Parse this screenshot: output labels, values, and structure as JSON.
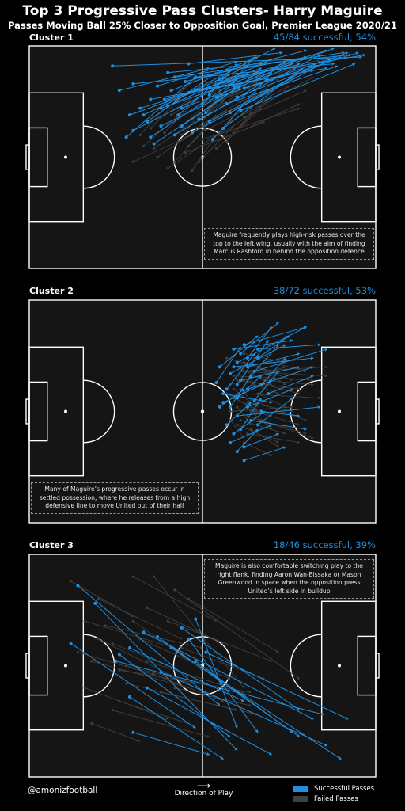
{
  "header": {
    "title": "Top 3 Progressive Pass Clusters- Harry Maguire",
    "subtitle": "Passes Moving Ball 25% Closer to Opposition Goal, Premier League 2020/21"
  },
  "colors": {
    "successful": "#1f8fe0",
    "failed": "#404040",
    "pitch": "#151515",
    "lines": "#ffffff"
  },
  "chart_data": [
    {
      "type": "scatter",
      "label": "Cluster 1",
      "stat": "45/84 successful, 54%",
      "annotation": "Maguire frequently plays high-risk passes over the top to the left wing, usually with the aim of finding Marcus Rashford in behind the opposition defence",
      "note_position": "bottom-right",
      "x_range": [
        0,
        100
      ],
      "y_range": [
        0,
        100
      ],
      "successful_passes": [
        [
          24,
          91,
          96,
          95
        ],
        [
          30,
          83,
          88,
          92
        ],
        [
          35,
          76,
          82,
          89
        ],
        [
          40,
          88,
          93,
          96
        ],
        [
          44,
          72,
          78,
          92
        ],
        [
          48,
          80,
          86,
          90
        ],
        [
          52,
          66,
          76,
          86
        ],
        [
          38,
          64,
          72,
          90
        ],
        [
          55,
          85,
          97,
          96
        ],
        [
          46,
          92,
          73,
          97
        ],
        [
          33,
          69,
          63,
          91
        ],
        [
          60,
          77,
          90,
          95
        ],
        [
          58,
          70,
          84,
          93
        ],
        [
          42,
          60,
          69,
          85
        ],
        [
          36,
          56,
          61,
          82
        ],
        [
          50,
          74,
          74,
          93
        ],
        [
          45,
          84,
          80,
          98
        ],
        [
          40,
          73,
          70,
          94
        ],
        [
          62,
          81,
          92,
          97
        ],
        [
          30,
          62,
          58,
          84
        ],
        [
          28,
          59,
          48,
          86
        ],
        [
          53,
          58,
          70,
          88
        ],
        [
          49,
          67,
          84,
          96
        ],
        [
          41,
          80,
          66,
          95
        ],
        [
          37,
          82,
          60,
          93
        ],
        [
          56,
          63,
          79,
          90
        ],
        [
          32,
          72,
          86,
          98
        ],
        [
          47,
          61,
          87,
          94
        ],
        [
          44,
          64,
          66,
          88
        ],
        [
          39,
          76,
          76,
          92
        ],
        [
          26,
          80,
          52,
          90
        ],
        [
          54,
          77,
          95,
          97
        ],
        [
          43,
          69,
          58,
          89
        ],
        [
          57,
          74,
          89,
          91
        ],
        [
          34,
          66,
          54,
          88
        ],
        [
          51,
          70,
          65,
          95
        ],
        [
          48,
          86,
          80,
          95
        ],
        [
          29,
          69,
          67,
          90
        ],
        [
          61,
          71,
          94,
          92
        ],
        [
          35,
          59,
          62,
          87
        ],
        [
          46,
          79,
          71,
          99
        ],
        [
          42,
          86,
          91,
          97
        ],
        [
          59,
          82,
          88,
          99
        ],
        [
          38,
          72,
          80,
          95
        ],
        [
          52,
          78,
          60,
          92
        ]
      ],
      "failed_passes": [
        [
          50,
          58,
          78,
          72
        ],
        [
          45,
          52,
          68,
          66
        ],
        [
          40,
          45,
          56,
          62
        ],
        [
          48,
          63,
          62,
          76
        ],
        [
          55,
          60,
          74,
          80
        ],
        [
          33,
          55,
          44,
          70
        ],
        [
          52,
          70,
          66,
          84
        ],
        [
          58,
          66,
          82,
          86
        ],
        [
          43,
          57,
          57,
          71
        ],
        [
          37,
          50,
          52,
          66
        ],
        [
          60,
          72,
          72,
          85
        ],
        [
          47,
          67,
          61,
          81
        ],
        [
          54,
          54,
          67,
          72
        ],
        [
          39,
          61,
          49,
          77
        ],
        [
          56,
          76,
          70,
          88
        ],
        [
          44,
          64,
          60,
          86
        ],
        [
          30,
          48,
          47,
          60
        ],
        [
          62,
          68,
          80,
          80
        ],
        [
          49,
          48,
          59,
          64
        ],
        [
          41,
          69,
          55,
          83
        ],
        [
          57,
          57,
          64,
          70
        ],
        [
          35,
          63,
          45,
          79
        ],
        [
          53,
          74,
          77,
          90
        ],
        [
          46,
          55,
          54,
          69
        ],
        [
          51,
          62,
          75,
          82
        ],
        [
          38,
          68,
          58,
          87
        ],
        [
          59,
          61,
          70,
          78
        ],
        [
          42,
          48,
          51,
          63
        ],
        [
          55,
          80,
          81,
          92
        ],
        [
          32,
          60,
          39,
          72
        ],
        [
          48,
          72,
          64,
          94
        ],
        [
          61,
          75,
          77,
          86
        ],
        [
          44,
          60,
          52,
          73
        ],
        [
          36,
          54,
          56,
          75
        ],
        [
          57,
          85,
          85,
          94
        ],
        [
          50,
          66,
          56,
          79
        ],
        [
          40,
          74,
          50,
          88
        ],
        [
          63,
          63,
          78,
          74
        ],
        [
          47,
          44,
          53,
          58
        ]
      ]
    },
    {
      "type": "scatter",
      "label": "Cluster 2",
      "stat": "38/72 successful, 53%",
      "annotation": "Many of Maguire’s progressive passes occur in settled possession, where he releases from a high defensive line to move United out of their half",
      "note_position": "bottom-left",
      "x_range": [
        0,
        100
      ],
      "y_range": [
        0,
        100
      ],
      "successful_passes": [
        [
          60,
          72,
          80,
          88
        ],
        [
          58,
          67,
          74,
          80
        ],
        [
          63,
          60,
          82,
          70
        ],
        [
          56,
          54,
          70,
          64
        ],
        [
          60,
          48,
          84,
          52
        ],
        [
          66,
          44,
          76,
          56
        ],
        [
          59,
          40,
          68,
          50
        ],
        [
          61,
          76,
          72,
          90
        ],
        [
          65,
          68,
          86,
          78
        ],
        [
          57,
          60,
          65,
          76
        ],
        [
          63,
          52,
          76,
          60
        ],
        [
          67,
          62,
          74,
          74
        ],
        [
          55,
          70,
          66,
          84
        ],
        [
          62,
          80,
          80,
          88
        ],
        [
          60,
          56,
          67,
          66
        ],
        [
          64,
          46,
          80,
          42
        ],
        [
          58,
          36,
          70,
          44
        ],
        [
          69,
          58,
          82,
          66
        ],
        [
          54,
          63,
          61,
          79
        ],
        [
          61,
          64,
          78,
          70
        ],
        [
          66,
          74,
          75,
          84
        ],
        [
          57,
          44,
          64,
          54
        ],
        [
          62,
          34,
          72,
          40
        ],
        [
          59,
          78,
          76,
          82
        ],
        [
          65,
          55,
          72,
          68
        ],
        [
          63,
          70,
          78,
          76
        ],
        [
          56,
          58,
          70,
          54
        ],
        [
          60,
          62,
          69,
          82
        ],
        [
          67,
          50,
          78,
          48
        ],
        [
          58,
          52,
          64,
          66
        ],
        [
          64,
          66,
          72,
          80
        ],
        [
          61,
          42,
          67,
          56
        ],
        [
          62,
          28,
          74,
          34
        ],
        [
          59,
          70,
          82,
          74
        ],
        [
          55,
          52,
          62,
          60
        ],
        [
          66,
          78,
          84,
          80
        ],
        [
          60,
          32,
          66,
          42
        ],
        [
          63,
          74,
          70,
          88
        ]
      ],
      "failed_passes": [
        [
          64,
          68,
          86,
          70
        ],
        [
          60,
          64,
          78,
          60
        ],
        [
          62,
          58,
          84,
          56
        ],
        [
          58,
          50,
          76,
          52
        ],
        [
          66,
          54,
          80,
          46
        ],
        [
          61,
          46,
          74,
          40
        ],
        [
          63,
          40,
          78,
          36
        ],
        [
          57,
          74,
          70,
          68
        ],
        [
          65,
          62,
          72,
          58
        ],
        [
          59,
          56,
          70,
          48
        ],
        [
          68,
          64,
          82,
          62
        ],
        [
          62,
          72,
          76,
          64
        ],
        [
          60,
          44,
          72,
          36
        ],
        [
          64,
          50,
          70,
          42
        ],
        [
          58,
          62,
          74,
          70
        ],
        [
          66,
          70,
          74,
          62
        ],
        [
          63,
          54,
          76,
          50
        ],
        [
          61,
          60,
          66,
          52
        ],
        [
          67,
          46,
          80,
          40
        ],
        [
          59,
          66,
          82,
          64
        ],
        [
          62,
          36,
          70,
          30
        ],
        [
          65,
          74,
          80,
          68
        ],
        [
          60,
          52,
          64,
          44
        ],
        [
          63,
          64,
          78,
          58
        ],
        [
          57,
          58,
          66,
          50
        ],
        [
          64,
          42,
          72,
          34
        ],
        [
          61,
          68,
          86,
          66
        ],
        [
          66,
          58,
          74,
          52
        ],
        [
          58,
          46,
          62,
          38
        ],
        [
          62,
          76,
          74,
          72
        ],
        [
          65,
          50,
          78,
          44
        ],
        [
          60,
          70,
          70,
          62
        ],
        [
          63,
          48,
          82,
          38
        ],
        [
          59,
          60,
          64,
          54
        ]
      ]
    },
    {
      "type": "scatter",
      "label": "Cluster 3",
      "stat": "18/46 successful, 39%",
      "annotation": "Maguire is also comfortable switching play to the right flank, finding Aaron Wan-Bissaka or Mason Greenwood in space when the opposition press United’s left side in buildup",
      "note_position": "top-right",
      "x_range": [
        0,
        100
      ],
      "y_range": [
        0,
        100
      ],
      "successful_passes": [
        [
          14,
          86,
          55,
          32
        ],
        [
          29,
          36,
          56,
          8
        ],
        [
          33,
          65,
          82,
          26
        ],
        [
          37,
          63,
          78,
          18
        ],
        [
          41,
          58,
          90,
          8
        ],
        [
          44,
          67,
          78,
          30
        ],
        [
          48,
          71,
          60,
          22
        ],
        [
          51,
          56,
          92,
          26
        ],
        [
          38,
          47,
          86,
          14
        ],
        [
          34,
          40,
          70,
          10
        ],
        [
          26,
          55,
          58,
          18
        ],
        [
          30,
          20,
          52,
          10
        ],
        [
          19,
          78,
          60,
          12
        ],
        [
          48,
          52,
          76,
          20
        ],
        [
          29,
          58,
          62,
          34
        ],
        [
          46,
          62,
          66,
          20
        ],
        [
          12,
          60,
          48,
          22
        ],
        [
          25,
          52,
          85,
          28
        ]
      ],
      "failed_passes": [
        [
          36,
          90,
          62,
          40
        ],
        [
          20,
          62,
          56,
          34
        ],
        [
          26,
          48,
          64,
          38
        ],
        [
          42,
          84,
          78,
          44
        ],
        [
          12,
          88,
          30,
          72
        ],
        [
          30,
          70,
          50,
          48
        ],
        [
          18,
          52,
          46,
          40
        ],
        [
          24,
          30,
          52,
          18
        ],
        [
          38,
          38,
          66,
          28
        ],
        [
          16,
          40,
          40,
          26
        ],
        [
          46,
          80,
          72,
          56
        ],
        [
          32,
          62,
          58,
          44
        ],
        [
          22,
          68,
          50,
          58
        ],
        [
          28,
          42,
          60,
          30
        ],
        [
          34,
          52,
          62,
          38
        ],
        [
          14,
          56,
          36,
          46
        ],
        [
          40,
          70,
          70,
          52
        ],
        [
          20,
          80,
          44,
          62
        ],
        [
          26,
          34,
          46,
          24
        ],
        [
          36,
          46,
          56,
          34
        ],
        [
          44,
          58,
          68,
          44
        ],
        [
          18,
          24,
          32,
          16
        ],
        [
          30,
          90,
          54,
          70
        ],
        [
          24,
          60,
          40,
          50
        ],
        [
          42,
          40,
          64,
          32
        ],
        [
          16,
          70,
          42,
          58
        ],
        [
          34,
          76,
          56,
          60
        ],
        [
          28,
          50,
          48,
          42
        ]
      ]
    }
  ],
  "footer": {
    "credit": "@amonizfootball",
    "direction_arrow": "⟶",
    "direction_label": "Direction of Play",
    "legend": {
      "successful": "Successful Passes",
      "failed": "Failed Passes"
    }
  }
}
